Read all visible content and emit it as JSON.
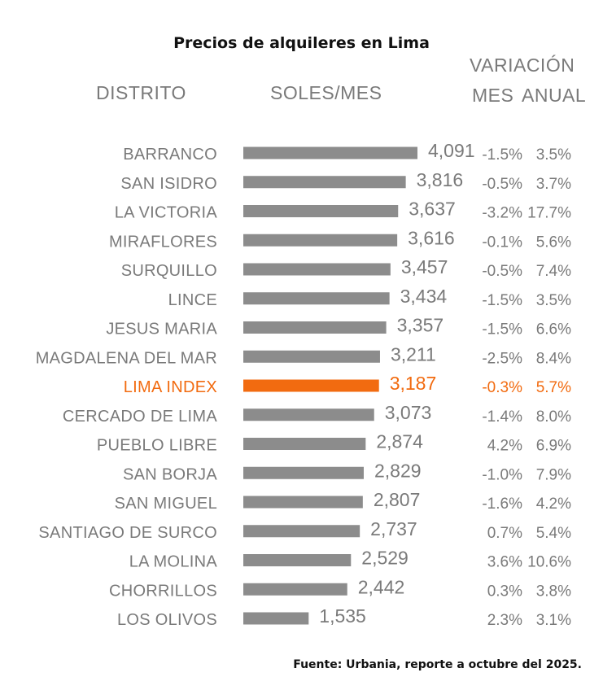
{
  "chart_data": {
    "type": "bar",
    "orientation": "horizontal",
    "title": "Precios de alquileres en Lima",
    "headers": {
      "district": "DISTRITO",
      "price": "SOLES/MES",
      "variation": "VARIACIÓN",
      "month": "MES",
      "annual": "ANUAL"
    },
    "categories": [
      "BARRANCO",
      "SAN ISIDRO",
      "LA VICTORIA",
      "MIRAFLORES",
      "SURQUILLO",
      "LINCE",
      "JESUS MARIA",
      "MAGDALENA DEL MAR",
      "LIMA INDEX",
      "CERCADO DE LIMA",
      "PUEBLO LIBRE",
      "SAN BORJA",
      "SAN MIGUEL",
      "SANTIAGO DE SURCO",
      "LA MOLINA",
      "CHORRILLOS",
      "LOS OLIVOS"
    ],
    "values": [
      4091,
      3816,
      3637,
      3616,
      3457,
      3434,
      3357,
      3211,
      3187,
      3073,
      2874,
      2829,
      2807,
      2737,
      2529,
      2442,
      1535
    ],
    "value_labels": [
      "4,091",
      "3,816",
      "3,637",
      "3,616",
      "3,457",
      "3,434",
      "3,357",
      "3,211",
      "3,187",
      "3,073",
      "2,874",
      "2,829",
      "2,807",
      "2,737",
      "2,529",
      "2,442",
      "1,535"
    ],
    "monthly_variation": [
      "-1.5%",
      "-0.5%",
      "-3.2%",
      "-0.1%",
      "-0.5%",
      "-1.5%",
      "-1.5%",
      "-2.5%",
      "-0.3%",
      "-1.4%",
      "4.2%",
      "-1.0%",
      "-1.6%",
      "0.7%",
      "3.6%",
      "0.3%",
      "2.3%"
    ],
    "annual_variation": [
      "3.5%",
      "3.7%",
      "17.7%",
      "5.6%",
      "7.4%",
      "3.5%",
      "6.6%",
      "8.4%",
      "5.7%",
      "8.0%",
      "6.9%",
      "7.9%",
      "4.2%",
      "5.4%",
      "10.6%",
      "3.8%",
      "3.1%"
    ],
    "highlight_index": 8,
    "bar_color": "#8c8c8c",
    "highlight_color": "#f26b10",
    "text_color": "#7a7a7a",
    "xlim": [
      0,
      4091
    ],
    "grid": false
  },
  "source_note": "Fuente: Urbania, reporte a octubre del 2025."
}
